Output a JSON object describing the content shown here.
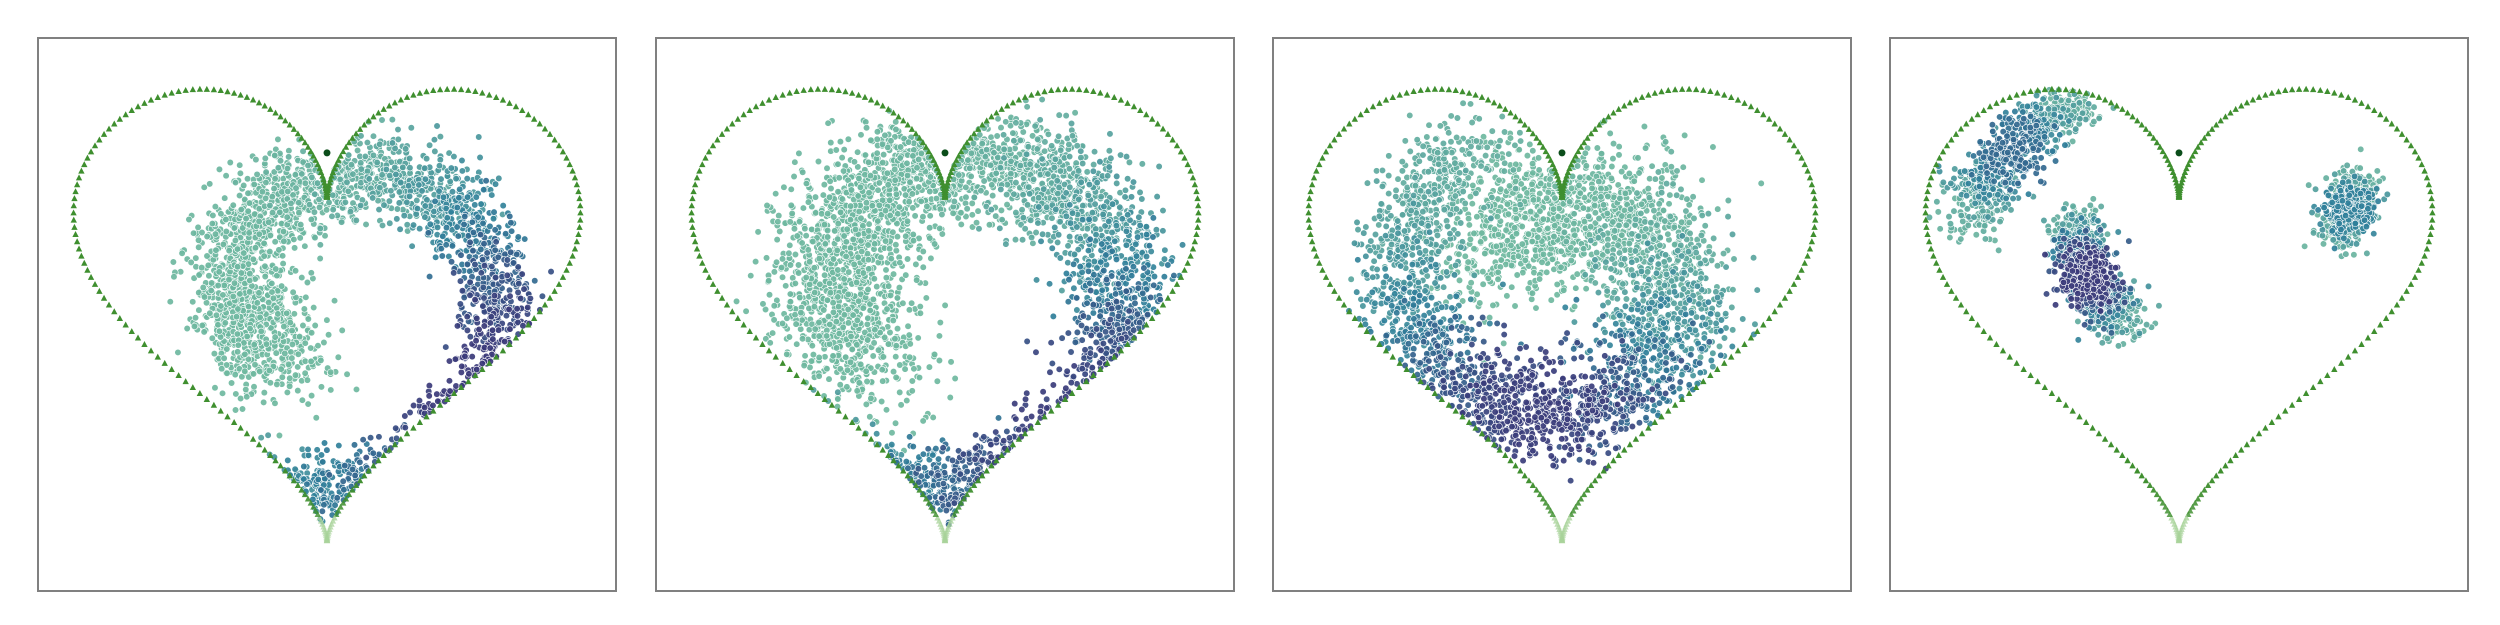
{
  "figure": {
    "panel_count": 4,
    "colors": {
      "border": "#808080",
      "heart_outline": "#3f8f2f",
      "heart_outline_tip": "#a8d39a",
      "center_marker": "#0b4d1a",
      "point_edge": "#ffffff",
      "density_low": "#6fb8a0",
      "density_mid": "#2f7f9a",
      "density_high": "#3b3a7a"
    }
  },
  "chart_data": [
    {
      "type": "scatter",
      "title": "",
      "xlabel": "",
      "ylabel": "",
      "xlim": [
        -1.5,
        1.5
      ],
      "ylim": [
        -1.5,
        1.5
      ],
      "grid": false,
      "axes_ticks": false,
      "boundary": "heart",
      "marker": {
        "x": 0.0,
        "y": 0.88
      },
      "samples": 2600,
      "seed": 11,
      "distribution": {
        "kind": "spiral",
        "center": [
          0.05,
          0.08
        ],
        "turns": 1.05,
        "theta0": 3.75,
        "r0": 1.13,
        "r1": 0.4,
        "width": 0.09,
        "peak_s": 0.3,
        "dense_colored": true
      }
    },
    {
      "type": "scatter",
      "title": "",
      "xlabel": "",
      "ylabel": "",
      "xlim": [
        -1.5,
        1.5
      ],
      "ylim": [
        -1.5,
        1.5
      ],
      "grid": false,
      "axes_ticks": false,
      "boundary": "heart",
      "marker": {
        "x": 0.0,
        "y": 0.88
      },
      "samples": 3200,
      "seed": 23,
      "distribution": {
        "kind": "spiral",
        "center": [
          0.05,
          0.08
        ],
        "turns": 1.0,
        "theta0": 3.85,
        "r0": 1.12,
        "r1": 0.55,
        "width": 0.12,
        "peak_s": 0.25
      }
    },
    {
      "type": "scatter",
      "title": "",
      "xlabel": "",
      "ylabel": "",
      "xlim": [
        -1.5,
        1.5
      ],
      "ylim": [
        -1.5,
        1.5
      ],
      "grid": false,
      "axes_ticks": false,
      "boundary": "heart",
      "marker": {
        "x": 0.0,
        "y": 0.88
      },
      "samples": 3400,
      "seed": 37,
      "distribution": {
        "kind": "spiral",
        "center": [
          0.0,
          0.15
        ],
        "turns": 1.1,
        "theta0": 2.1,
        "r0": 0.9,
        "r1": 0.35,
        "width": 0.13,
        "peak_s": 0.35
      }
    },
    {
      "type": "scatter",
      "title": "",
      "xlabel": "",
      "ylabel": "",
      "xlim": [
        -1.5,
        1.5
      ],
      "ylim": [
        -1.5,
        1.5
      ],
      "grid": false,
      "axes_ticks": false,
      "boundary": "heart",
      "marker": {
        "x": 0.0,
        "y": 0.88
      },
      "samples": 2400,
      "seed": 53,
      "distribution": {
        "kind": "arcs",
        "arcs": [
          {
            "center": [
              0.08,
              0.45
            ],
            "radius": 0.6,
            "theta_from": 3.05,
            "theta_to": 4.05,
            "width": 0.07,
            "weight": 1.2
          },
          {
            "center": [
              -0.05,
              0.15
            ],
            "radius": 1.1,
            "theta_from": 2.0,
            "theta_to": 2.8,
            "width": 0.08,
            "weight": 0.8
          },
          {
            "center": [
              0.35,
              0.7
            ],
            "radius": 0.55,
            "theta_from": 5.8,
            "theta_to": 6.3,
            "width": 0.06,
            "weight": 0.6
          }
        ]
      }
    }
  ]
}
